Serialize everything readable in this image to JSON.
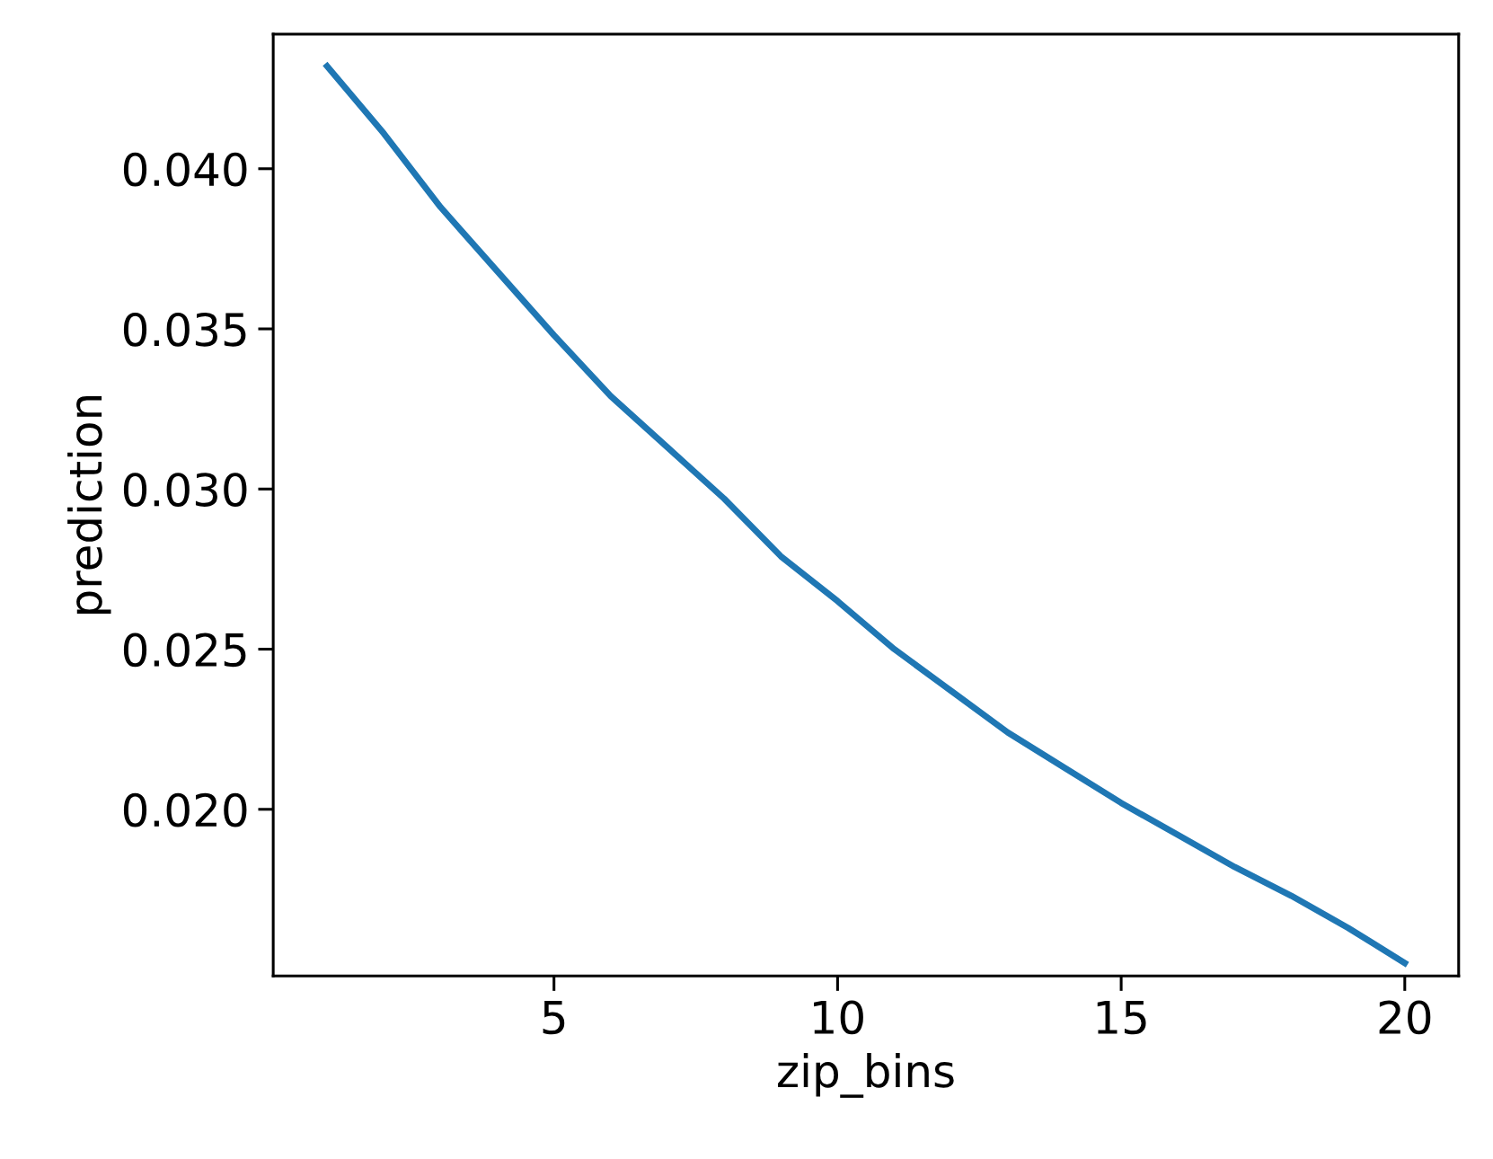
{
  "chart_data": {
    "type": "line",
    "xlabel": "zip_bins",
    "ylabel": "prediction",
    "x": [
      1,
      2,
      3,
      4,
      5,
      6,
      7,
      8,
      9,
      10,
      11,
      12,
      13,
      14,
      15,
      16,
      17,
      18,
      19,
      20
    ],
    "series": [
      {
        "color": "#1f77b4",
        "values": [
          0.0432,
          0.0411,
          0.0388,
          0.0368,
          0.0348,
          0.0329,
          0.0313,
          0.0297,
          0.0279,
          0.0265,
          0.025,
          0.0237,
          0.0224,
          0.0213,
          0.0202,
          0.0192,
          0.0182,
          0.0173,
          0.0163,
          0.0152
        ]
      }
    ],
    "xlim": [
      0.05,
      20.95
    ],
    "ylim": [
      0.0148,
      0.0442
    ],
    "xticks": [
      5,
      10,
      15,
      20
    ],
    "yticks": [
      {
        "value": 0.02,
        "label": "0.020"
      },
      0.025,
      {
        "value": 0.03,
        "label": "0.030"
      },
      0.035,
      {
        "value": 0.04,
        "label": "0.040"
      }
    ],
    "grid": false,
    "legend": false,
    "marker": "none",
    "line_style": "solid"
  }
}
